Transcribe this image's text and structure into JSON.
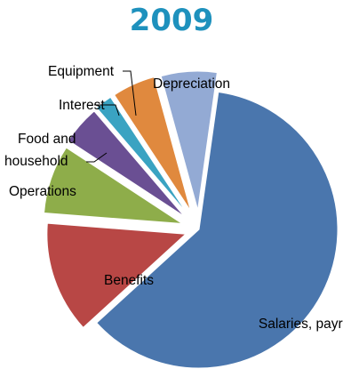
{
  "chart_data": {
    "type": "pie",
    "title": "2009",
    "exploded": true,
    "slices": [
      {
        "label": "Salaries, payroll",
        "value": 61.0,
        "color": "#4a76ad"
      },
      {
        "label": "Benefits",
        "value": 13.0,
        "color": "#b84745"
      },
      {
        "label": "Operations",
        "value": 8.0,
        "color": "#8ead4a"
      },
      {
        "label": "Food and household",
        "value": 4.5,
        "color": "#6a4f93"
      },
      {
        "label": "Interest",
        "value": 2.0,
        "color": "#3aa3c2"
      },
      {
        "label": "Equipment",
        "value": 5.0,
        "color": "#e0893e"
      },
      {
        "label": "Depreciation",
        "value": 6.5,
        "color": "#93aad4"
      }
    ]
  },
  "labels": {
    "salaries": "Salaries, payroll",
    "benefits": "Benefits",
    "operations": "Operations",
    "food_line1": "Food and",
    "food_line2": "household",
    "interest": "Interest",
    "equipment": "Equipment",
    "depreciation": "Depreciation"
  }
}
